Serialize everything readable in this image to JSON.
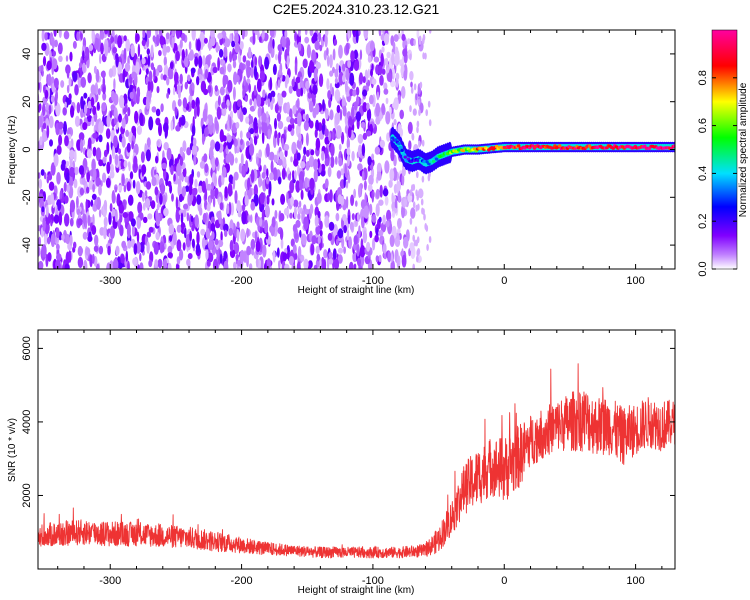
{
  "title": "C2E5.2024.310.23.12.G21",
  "chart_data": [
    {
      "type": "heatmap",
      "xlabel": "Height of straight line (km)",
      "ylabel": "Frequency (Hz)",
      "xlim": [
        -355,
        130
      ],
      "ylim": [
        -50,
        50
      ],
      "xticks": [
        -300,
        -200,
        -100,
        0,
        100
      ],
      "yticks": [
        -40,
        -20,
        0,
        20,
        40
      ],
      "colorbar": {
        "label": "Normalized spectral amplitude",
        "range": [
          0,
          1
        ],
        "ticks": [
          0.0,
          0.2,
          0.4,
          0.6,
          0.8
        ],
        "colormap": [
          "#ffffff",
          "#8000ff",
          "#0000ff",
          "#00ffff",
          "#00ff00",
          "#ffff00",
          "#ff0000",
          "#ff00ff"
        ]
      },
      "noise_region": {
        "x": [
          -355,
          -75
        ],
        "y": [
          -50,
          50
        ],
        "amplitude": [
          0.05,
          0.15
        ]
      },
      "signal_track": [
        {
          "x": -85,
          "y": 5
        },
        {
          "x": -80,
          "y": 2
        },
        {
          "x": -75,
          "y": -4
        },
        {
          "x": -70,
          "y": -5
        },
        {
          "x": -65,
          "y": -4
        },
        {
          "x": -60,
          "y": -6
        },
        {
          "x": -55,
          "y": -5
        },
        {
          "x": -50,
          "y": -3
        },
        {
          "x": -45,
          "y": -2
        },
        {
          "x": -40,
          "y": -1
        },
        {
          "x": -30,
          "y": 0
        },
        {
          "x": -20,
          "y": 0
        },
        {
          "x": 0,
          "y": 1
        },
        {
          "x": 20,
          "y": 1
        },
        {
          "x": 40,
          "y": 1
        },
        {
          "x": 60,
          "y": 1
        },
        {
          "x": 80,
          "y": 1
        },
        {
          "x": 100,
          "y": 1
        },
        {
          "x": 130,
          "y": 1
        }
      ],
      "signal_amplitude": [
        {
          "x": -85,
          "value": 0.25
        },
        {
          "x": -60,
          "value": 0.3
        },
        {
          "x": -40,
          "value": 0.6
        },
        {
          "x": -20,
          "value": 0.75
        },
        {
          "x": 0,
          "value": 0.85
        },
        {
          "x": 60,
          "value": 0.9
        },
        {
          "x": 130,
          "value": 0.95
        }
      ]
    },
    {
      "type": "line",
      "xlabel": "Height of straight line (km)",
      "ylabel": "SNR (10 * v/v)",
      "xlim": [
        -355,
        130
      ],
      "ylim": [
        0,
        6500
      ],
      "xticks": [
        -300,
        -200,
        -100,
        0,
        100
      ],
      "yticks": [
        2000,
        4000,
        6000
      ],
      "series": [
        {
          "color": "#ee3333",
          "x": [
            -355,
            -340,
            -320,
            -300,
            -280,
            -260,
            -240,
            -220,
            -200,
            -180,
            -160,
            -140,
            -120,
            -100,
            -80,
            -60,
            -50,
            -40,
            -30,
            -20,
            -10,
            0,
            10,
            20,
            30,
            40,
            50,
            60,
            70,
            80,
            90,
            100,
            110,
            120,
            130
          ],
          "y": [
            900,
            950,
            1000,
            950,
            950,
            900,
            850,
            750,
            650,
            550,
            500,
            450,
            450,
            450,
            450,
            500,
            800,
            1400,
            2200,
            2500,
            2800,
            2700,
            3000,
            3500,
            3700,
            3900,
            4000,
            4100,
            3900,
            3900,
            3600,
            3800,
            4000,
            3900,
            4000
          ],
          "spread": [
            300,
            350,
            350,
            350,
            330,
            320,
            300,
            280,
            220,
            180,
            150,
            150,
            150,
            150,
            150,
            180,
            350,
            500,
            700,
            800,
            800,
            900,
            900,
            700,
            700,
            700,
            800,
            900,
            800,
            800,
            800,
            700,
            700,
            700,
            600
          ]
        }
      ]
    }
  ]
}
